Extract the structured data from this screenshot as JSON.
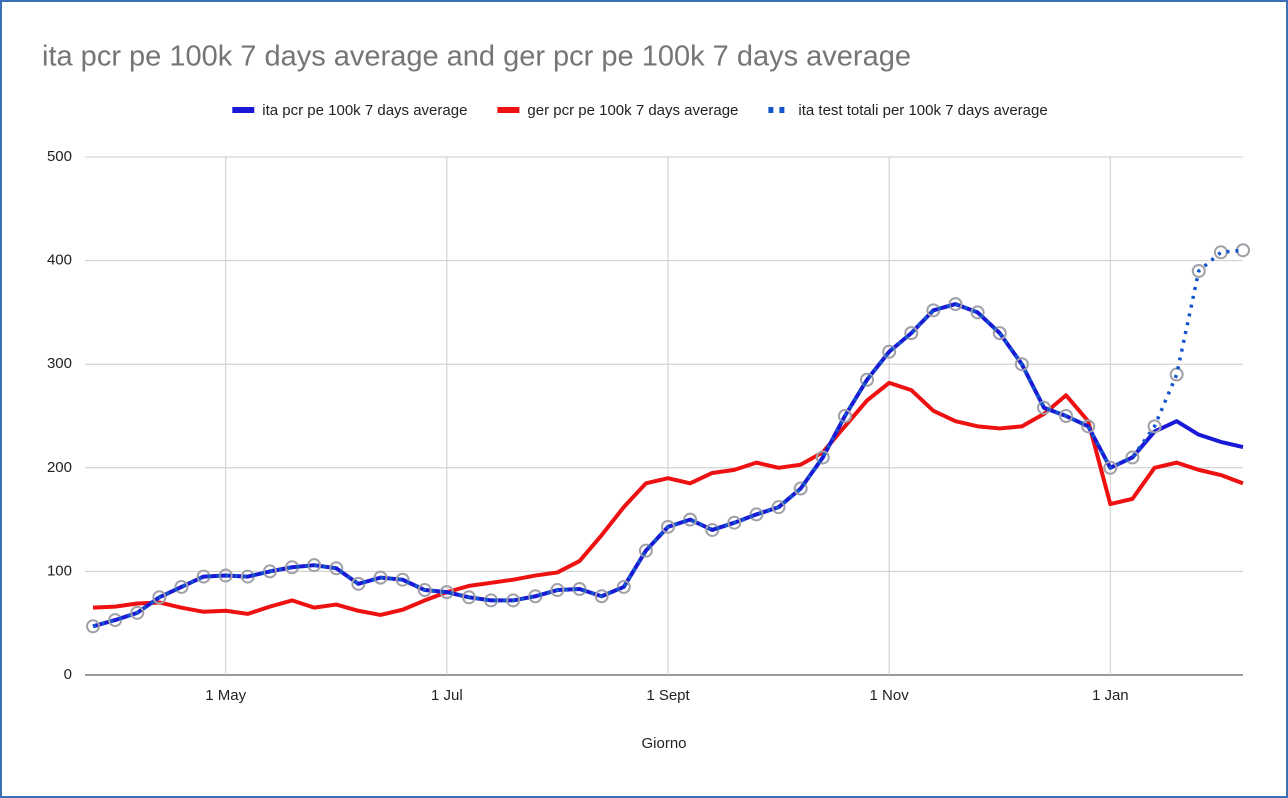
{
  "chart_data": {
    "type": "line",
    "title": "ita pcr pe 100k 7 days average and ger pcr pe 100k 7 days average",
    "x_label": "Giorno",
    "categories": [
      null,
      null,
      null,
      null,
      null,
      null,
      "1 May",
      null,
      null,
      null,
      null,
      null,
      null,
      null,
      null,
      null,
      "1 Jul",
      null,
      null,
      null,
      null,
      null,
      null,
      null,
      null,
      null,
      "1 Sept",
      null,
      null,
      null,
      null,
      null,
      null,
      null,
      null,
      null,
      "1 Nov",
      null,
      null,
      null,
      null,
      null,
      null,
      null,
      null,
      null,
      "1 Jan",
      null,
      null,
      null,
      null,
      null,
      null
    ],
    "series": [
      {
        "name": "ita pcr pe 100k 7 days average",
        "color": "#1a1ad6",
        "style": "solid",
        "values": [
          47,
          53,
          60,
          75,
          85,
          95,
          96,
          95,
          100,
          104,
          106,
          103,
          88,
          94,
          92,
          82,
          80,
          75,
          72,
          72,
          76,
          82,
          83,
          76,
          85,
          120,
          143,
          150,
          140,
          147,
          155,
          162,
          180,
          210,
          250,
          285,
          312,
          330,
          352,
          358,
          350,
          330,
          300,
          258,
          250,
          240,
          200,
          210,
          235,
          245,
          232,
          225,
          220
        ]
      },
      {
        "name": "ger pcr pe 100k 7 days average",
        "color": "#ee1111",
        "style": "solid",
        "values": [
          65,
          66,
          69,
          70,
          65,
          61,
          62,
          59,
          66,
          72,
          65,
          68,
          62,
          58,
          63,
          72,
          80,
          86,
          89,
          92,
          96,
          99,
          110,
          135,
          162,
          185,
          190,
          185,
          195,
          198,
          205,
          200,
          203,
          215,
          240,
          265,
          282,
          275,
          255,
          245,
          240,
          238,
          240,
          252,
          270,
          245,
          165,
          170,
          200,
          205,
          198,
          193,
          185
        ]
      },
      {
        "name": "ita test totali per 100k 7 days average",
        "color": "#1155cc",
        "style": "dotted",
        "marker_color": "#a0a0a8",
        "values": [
          47,
          53,
          60,
          75,
          85,
          95,
          96,
          95,
          100,
          104,
          106,
          103,
          88,
          94,
          92,
          82,
          80,
          75,
          72,
          72,
          76,
          82,
          83,
          76,
          85,
          120,
          143,
          150,
          140,
          147,
          155,
          162,
          180,
          210,
          250,
          285,
          312,
          330,
          352,
          358,
          350,
          330,
          300,
          258,
          250,
          240,
          200,
          210,
          240,
          290,
          390,
          408,
          410
        ]
      }
    ],
    "ylim": [
      0,
      500
    ],
    "yticks": [
      0,
      100,
      200,
      300,
      400,
      500
    ],
    "grid": true,
    "legend": "top"
  }
}
